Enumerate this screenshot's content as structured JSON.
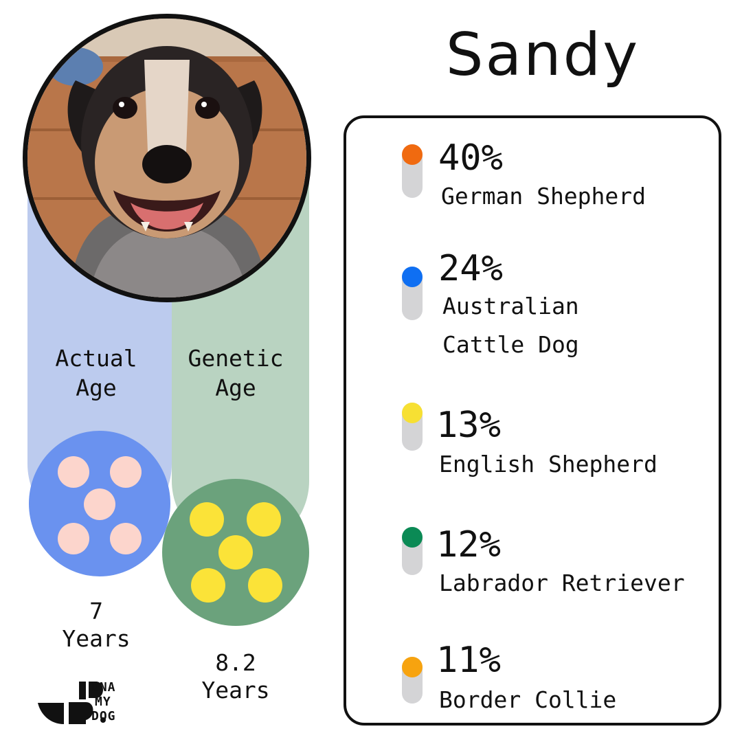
{
  "dog": {
    "name": "Sandy",
    "photo_subject": "dog-photo"
  },
  "ages": {
    "actual": {
      "label": "Actual\nAge",
      "value": "7",
      "unit": "Years"
    },
    "genetic": {
      "label": "Genetic\nAge",
      "value": "8.2",
      "unit": "Years"
    }
  },
  "breeds": [
    {
      "percent": "40%",
      "name": "German Shepherd",
      "color": "#f06a10"
    },
    {
      "percent": "24%",
      "name": "Australian\nCattle Dog",
      "color": "#0f6ff2"
    },
    {
      "percent": "13%",
      "name": "English Shepherd",
      "color": "#f7e033"
    },
    {
      "percent": "12%",
      "name": "Labrador Retriever",
      "color": "#0b8a55"
    },
    {
      "percent": "11%",
      "name": "Border Collie",
      "color": "#f7a30f"
    }
  ],
  "colors": {
    "actual_column": "#bccbee",
    "genetic_column": "#b9d3c1",
    "actual_dice": "#6a92ef",
    "genetic_dice": "#6ba27c",
    "actual_pips": "#fcd5cc",
    "genetic_pips": "#fbe338"
  },
  "logo": {
    "line1": "DNA",
    "line2": "MY",
    "line3": "DOG"
  }
}
